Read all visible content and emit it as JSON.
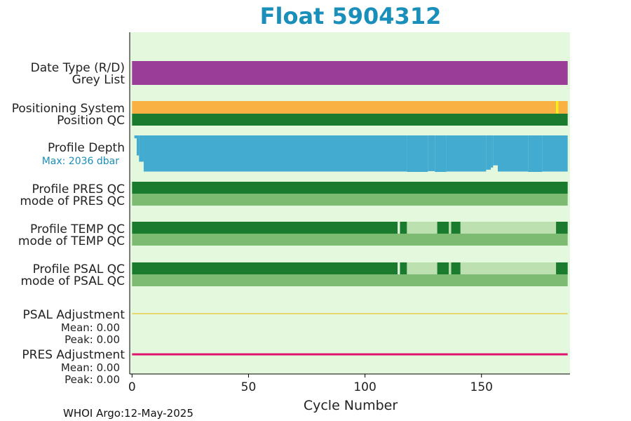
{
  "chart_data": {
    "type": "bar",
    "title": "Float 5904312",
    "xlabel": "Cycle Number",
    "xlim": [
      -1,
      188
    ],
    "xticks": [
      0,
      50,
      100,
      150
    ],
    "grid": false,
    "rows": {
      "date_type": "Date Type (R/D)",
      "grey_list": "Grey List",
      "positioning_system": "Positioning System",
      "position_qc": "Position QC",
      "profile_depth": "Profile Depth",
      "profile_depth_max": "Max: 2036 dbar",
      "profile_pres_qc": "Profile PRES QC",
      "mode_pres_qc": "mode of PRES QC",
      "profile_temp_qc": "Profile TEMP QC",
      "mode_temp_qc": "mode of TEMP QC",
      "profile_psal_qc": "Profile PSAL QC",
      "mode_psal_qc": "mode of PSAL QC",
      "psal_adjustment": "PSAL Adjustment",
      "psal_mean": "Mean: 0.00",
      "psal_peak": "Peak: 0.00",
      "pres_adjustment": "PRES Adjustment",
      "pres_mean": "Mean: 0.00",
      "pres_peak": "Peak: 0.00"
    },
    "last_cycle": 187,
    "profile_depth_max_dbar": 2036,
    "depth_steps": [
      {
        "from": 0,
        "to": 1,
        "fraction": 0.0
      },
      {
        "from": 1,
        "to": 2,
        "fraction": 0.08
      },
      {
        "from": 2,
        "to": 3,
        "fraction": 0.55
      },
      {
        "from": 3,
        "to": 5,
        "fraction": 0.72
      },
      {
        "from": 5,
        "to": 118,
        "fraction": 0.99
      },
      {
        "from": 118,
        "to": 127,
        "fraction": 1.0
      },
      {
        "from": 127,
        "to": 130,
        "fraction": 0.98
      },
      {
        "from": 130,
        "to": 135,
        "fraction": 1.0
      },
      {
        "from": 135,
        "to": 152,
        "fraction": 0.99
      },
      {
        "from": 152,
        "to": 154,
        "fraction": 0.94
      },
      {
        "from": 154,
        "to": 155,
        "fraction": 0.88
      },
      {
        "from": 155,
        "to": 157,
        "fraction": 0.82
      },
      {
        "from": 157,
        "to": 170,
        "fraction": 0.99
      },
      {
        "from": 170,
        "to": 176,
        "fraction": 1.0
      },
      {
        "from": 176,
        "to": 187,
        "fraction": 0.99
      }
    ],
    "qc_segments": {
      "temp": [
        {
          "from": 0,
          "to": 114,
          "color": "#1a7a2e"
        },
        {
          "from": 115,
          "to": 118,
          "color": "#1a7a2e"
        },
        {
          "from": 118,
          "to": 131,
          "color": "#bde0b0"
        },
        {
          "from": 131,
          "to": 136,
          "color": "#1a7a2e"
        },
        {
          "from": 136,
          "to": 137,
          "color": "#bde0b0"
        },
        {
          "from": 137,
          "to": 141,
          "color": "#1a7a2e"
        },
        {
          "from": 141,
          "to": 182,
          "color": "#bde0b0"
        },
        {
          "from": 182,
          "to": 187,
          "color": "#1a7a2e"
        }
      ],
      "psal": [
        {
          "from": 0,
          "to": 114,
          "color": "#1a7a2e"
        },
        {
          "from": 115,
          "to": 118,
          "color": "#1a7a2e"
        },
        {
          "from": 118,
          "to": 131,
          "color": "#bde0b0"
        },
        {
          "from": 131,
          "to": 136,
          "color": "#1a7a2e"
        },
        {
          "from": 136,
          "to": 137,
          "color": "#bde0b0"
        },
        {
          "from": 137,
          "to": 141,
          "color": "#1a7a2e"
        },
        {
          "from": 141,
          "to": 182,
          "color": "#bde0b0"
        },
        {
          "from": 182,
          "to": 187,
          "color": "#1a7a2e"
        }
      ]
    },
    "positioning_marker_cycle": 182,
    "colors": {
      "title": "#1a8fb9",
      "plot_background": "#e4f8de",
      "date_type": "#993d99",
      "positioning_system": "#fab143",
      "positioning_marker": "#f2f21a",
      "qc_good": "#1a7a2e",
      "qc_mode": "#7dbb72",
      "qc_light": "#bde0b0",
      "profile_depth": "#43abd0",
      "max_label": "#1a8fb9",
      "psal_adjustment_line": "#e8b800",
      "pres_adjustment_line": "#e0156f"
    }
  },
  "footer": "WHOI Argo:12-May-2025"
}
